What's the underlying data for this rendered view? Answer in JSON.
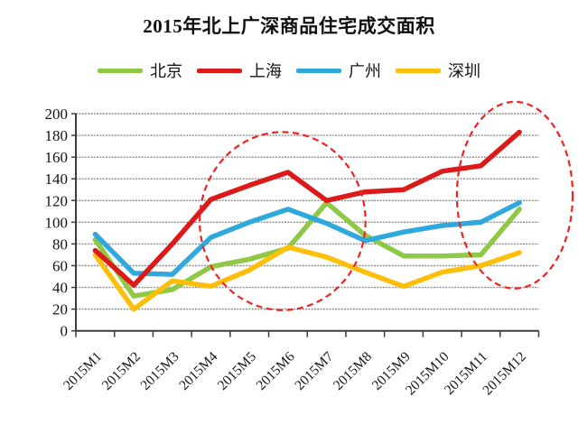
{
  "title": "2015年北上广深商品住宅成交面积",
  "legend": {
    "items": [
      {
        "label": "北京",
        "color": "#8fc845",
        "slug": "beijing"
      },
      {
        "label": "上海",
        "color": "#dd1a1a",
        "slug": "shanghai"
      },
      {
        "label": "广州",
        "color": "#2fa8dc",
        "slug": "guangzhou"
      },
      {
        "label": "深圳",
        "color": "#ffbe0a",
        "slug": "shenzhen"
      }
    ]
  },
  "chart_data": {
    "type": "line",
    "title": "2015年北上广深商品住宅成交面积",
    "categories": [
      "2015M1",
      "2015M2",
      "2015M3",
      "2015M4",
      "2015M5",
      "2015M6",
      "2015M7",
      "2015M8",
      "2015M9",
      "2015M10",
      "2015M11",
      "2015M12"
    ],
    "ylim": [
      0,
      200
    ],
    "ytick_step": 20,
    "y_tick_labels": [
      "0",
      "20",
      "40",
      "60",
      "80",
      "100",
      "120",
      "140",
      "160",
      "180",
      "200"
    ],
    "grid": "horizontal",
    "legend_position": "top",
    "series": [
      {
        "name": "北京",
        "slug": "beijing",
        "color": "#8fc845",
        "values": [
          84,
          32,
          38,
          59,
          66,
          76,
          118,
          88,
          69,
          69,
          70,
          112
        ]
      },
      {
        "name": "上海",
        "slug": "shanghai",
        "color": "#dd1a1a",
        "values": [
          74,
          42,
          80,
          121,
          134,
          146,
          120,
          128,
          130,
          147,
          152,
          183
        ]
      },
      {
        "name": "广州",
        "slug": "guangzhou",
        "color": "#2fa8dc",
        "values": [
          89,
          53,
          52,
          86,
          100,
          112,
          99,
          83,
          91,
          97,
          100,
          118
        ]
      },
      {
        "name": "深圳",
        "slug": "shenzhen",
        "color": "#ffbe0a",
        "values": [
          70,
          20,
          46,
          41,
          56,
          77,
          68,
          54,
          41,
          54,
          60,
          72
        ]
      }
    ],
    "z_order": [
      0,
      2,
      3,
      1
    ],
    "annotations": [
      {
        "type": "ellipse",
        "style": "dashed-red",
        "x_center": 5.86,
        "y_center": 101,
        "x_radius": 2.15,
        "y_radius": 82
      },
      {
        "type": "ellipse",
        "style": "dashed-red",
        "x_center": 11.88,
        "y_center": 125,
        "x_radius": 1.5,
        "y_radius": 86
      }
    ],
    "colors": {
      "annotation": "#f32222",
      "gridline": "#8a8a8a",
      "axis": "#3d3d3d"
    }
  }
}
